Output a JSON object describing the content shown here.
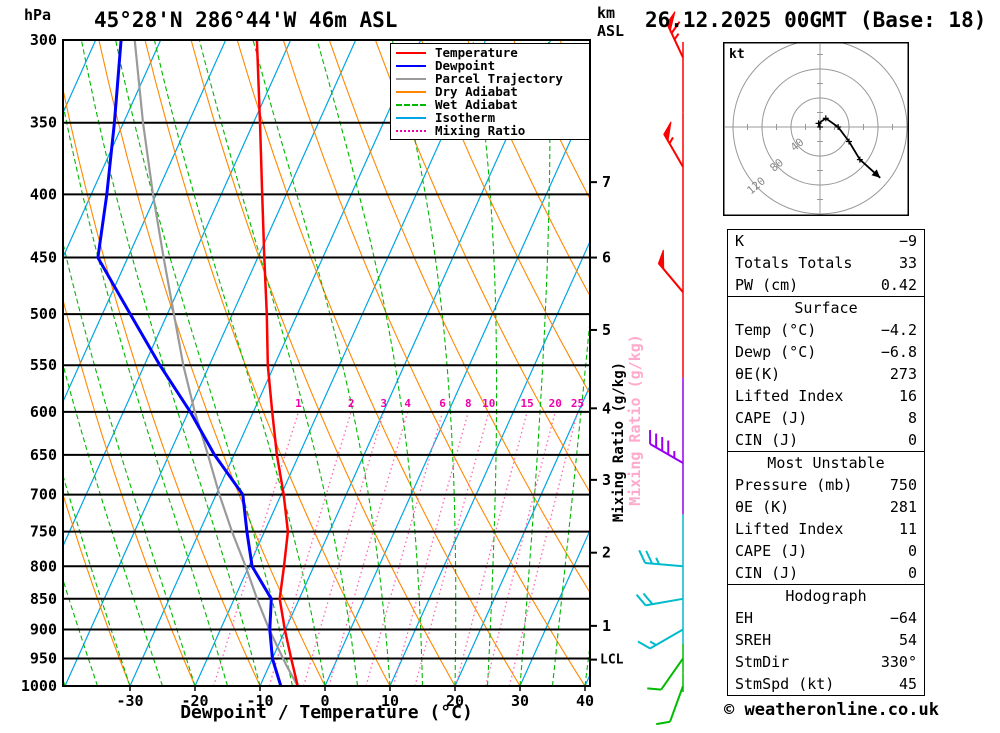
{
  "page": {
    "station_title": "45°28'N 286°44'W 46m ASL",
    "datetime_title": "26.12.2025 00GMT (Base: 18)",
    "alt_unit_km": "km",
    "alt_unit_asl": "ASL"
  },
  "axes": {
    "pressure_unit": "hPa",
    "x_label": "Dewpoint / Temperature (°C)",
    "x_ticks": [
      -30,
      -20,
      -10,
      0,
      10,
      20,
      30,
      40
    ],
    "pressure_ticks": [
      300,
      350,
      400,
      450,
      500,
      550,
      600,
      650,
      700,
      750,
      800,
      850,
      900,
      950,
      1000
    ],
    "mixing_ratio_axis_label": "Mixing Ratio (g/kg)"
  },
  "legend": {
    "items": [
      {
        "label": "Temperature",
        "color": "#ff0000",
        "style": "solid"
      },
      {
        "label": "Dewpoint",
        "color": "#0000ff",
        "style": "solid"
      },
      {
        "label": "Parcel Trajectory",
        "color": "#9a9a9a",
        "style": "solid"
      },
      {
        "label": "Dry Adiabat",
        "color": "#ff8800",
        "style": "solid"
      },
      {
        "label": "Wet Adiabat",
        "color": "#00b800",
        "style": "dashed"
      },
      {
        "label": "Isotherm",
        "color": "#00a5e5",
        "style": "solid"
      },
      {
        "label": "Mixing Ratio",
        "color": "#ee00aa",
        "style": "dotted"
      }
    ]
  },
  "chart_data": {
    "type": "line",
    "subtype": "skew-t-log-p-sounding",
    "x_axis": {
      "label": "Dewpoint / Temperature (°C)",
      "range_at_surface": [
        -40,
        41
      ],
      "ticks": [
        -30,
        -20,
        -10,
        0,
        10,
        20,
        30,
        40
      ]
    },
    "y_axis": {
      "label": "hPa",
      "scale": "log",
      "range": [
        300,
        1000
      ],
      "ticks": [
        300,
        350,
        400,
        450,
        500,
        550,
        600,
        650,
        700,
        750,
        800,
        850,
        900,
        950,
        1000
      ]
    },
    "series": [
      {
        "name": "Temperature",
        "color": "#ff0000",
        "points_p_t": [
          [
            1000,
            -4.2
          ],
          [
            950,
            -7.1
          ],
          [
            900,
            -10.1
          ],
          [
            850,
            -13.0
          ],
          [
            800,
            -14.6
          ],
          [
            750,
            -16.4
          ],
          [
            700,
            -19.6
          ],
          [
            650,
            -23.4
          ],
          [
            600,
            -27.1
          ],
          [
            550,
            -31.0
          ],
          [
            500,
            -34.7
          ],
          [
            450,
            -39.0
          ],
          [
            400,
            -43.7
          ],
          [
            350,
            -49.0
          ],
          [
            300,
            -55.2
          ]
        ]
      },
      {
        "name": "Dewpoint",
        "color": "#0000ff",
        "points_p_t": [
          [
            1000,
            -6.8
          ],
          [
            950,
            -10.0
          ],
          [
            900,
            -12.4
          ],
          [
            850,
            -14.3
          ],
          [
            800,
            -19.5
          ],
          [
            750,
            -22.7
          ],
          [
            700,
            -25.9
          ],
          [
            650,
            -33.0
          ],
          [
            600,
            -39.7
          ],
          [
            550,
            -47.6
          ],
          [
            500,
            -55.7
          ],
          [
            450,
            -64.6
          ],
          [
            400,
            -67.6
          ],
          [
            350,
            -71.4
          ],
          [
            300,
            -76.1
          ]
        ]
      },
      {
        "name": "Parcel Trajectory",
        "color": "#9a9a9a",
        "points_p_t": [
          [
            1000,
            -4.2
          ],
          [
            962,
            -7.4
          ],
          [
            900,
            -12.5
          ],
          [
            850,
            -16.5
          ],
          [
            800,
            -20.5
          ],
          [
            750,
            -25.0
          ],
          [
            700,
            -29.5
          ],
          [
            650,
            -34.0
          ],
          [
            600,
            -39.0
          ],
          [
            550,
            -44.0
          ],
          [
            500,
            -49.0
          ],
          [
            450,
            -54.5
          ],
          [
            400,
            -60.5
          ],
          [
            350,
            -67.0
          ],
          [
            300,
            -74.0
          ]
        ]
      }
    ],
    "background_lines": {
      "isotherm_step_c": 10,
      "dry_adiabat_theta_c": [
        -40,
        110
      ],
      "wet_adiabat_surface_temps_c": [
        -40,
        40
      ],
      "mixing_ratio_g_kg": [
        1,
        2,
        3,
        4,
        6,
        8,
        10,
        15,
        20,
        25
      ]
    },
    "km_ticks": [
      {
        "km": 1,
        "p": 894
      },
      {
        "km": 2,
        "p": 780
      },
      {
        "km": 3,
        "p": 681
      },
      {
        "km": 4,
        "p": 596
      },
      {
        "km": 5,
        "p": 515
      },
      {
        "km": 6,
        "p": 450
      },
      {
        "km": 7,
        "p": 391
      }
    ],
    "lcl": {
      "label": "LCL",
      "pressure": 952
    },
    "wind_barbs": [
      {
        "p": 310,
        "speed_kt": 65,
        "dir_deg": 335,
        "color": "#ff0000"
      },
      {
        "p": 380,
        "speed_kt": 55,
        "dir_deg": 330,
        "color": "#ff0000"
      },
      {
        "p": 480,
        "speed_kt": 50,
        "dir_deg": 320,
        "color": "#ff0000"
      },
      {
        "p": 660,
        "speed_kt": 45,
        "dir_deg": 300,
        "color": "#9900ee"
      },
      {
        "p": 800,
        "speed_kt": 25,
        "dir_deg": 275,
        "color": "#00bbcc"
      },
      {
        "p": 850,
        "speed_kt": 20,
        "dir_deg": 260,
        "color": "#00bbcc"
      },
      {
        "p": 900,
        "speed_kt": 15,
        "dir_deg": 240,
        "color": "#00bbcc"
      },
      {
        "p": 950,
        "speed_kt": 10,
        "dir_deg": 215,
        "color": "#00bb00"
      },
      {
        "p": 1000,
        "speed_kt": 10,
        "dir_deg": 200,
        "color": "#00bb00"
      }
    ],
    "hodograph": {
      "unit": "kt",
      "rings_kt": [
        40,
        80,
        120
      ],
      "trace_uv_kt": [
        [
          0,
          0
        ],
        [
          -2,
          5
        ],
        [
          8,
          12
        ],
        [
          25,
          0
        ],
        [
          40,
          -20
        ],
        [
          55,
          -45
        ],
        [
          83,
          -70
        ]
      ]
    }
  },
  "stats": {
    "sections": [
      {
        "title": null,
        "rows": [
          [
            "K",
            "−9"
          ],
          [
            "Totals Totals",
            "33"
          ],
          [
            "PW (cm)",
            "0.42"
          ]
        ]
      },
      {
        "title": "Surface",
        "rows": [
          [
            "Temp (°C)",
            "−4.2"
          ],
          [
            "Dewp (°C)",
            "−6.8"
          ],
          [
            "θE(K)",
            "273"
          ],
          [
            "Lifted Index",
            "16"
          ],
          [
            "CAPE (J)",
            "8"
          ],
          [
            "CIN (J)",
            "0"
          ]
        ]
      },
      {
        "title": "Most Unstable",
        "rows": [
          [
            "Pressure (mb)",
            "750"
          ],
          [
            "θE (K)",
            "281"
          ],
          [
            "Lifted Index",
            "11"
          ],
          [
            "CAPE (J)",
            "0"
          ],
          [
            "CIN (J)",
            "0"
          ]
        ]
      },
      {
        "title": "Hodograph",
        "rows": [
          [
            "EH",
            "−64"
          ],
          [
            "SREH",
            "54"
          ],
          [
            "StmDir",
            "330°"
          ],
          [
            "StmSpd (kt)",
            "45"
          ]
        ]
      }
    ]
  },
  "footer": {
    "copyright": "© weatheronline.co.uk"
  },
  "colors": {
    "temperature": "#ff0000",
    "dewpoint": "#0000ff",
    "parcel": "#9a9a9a",
    "dry_adiabat": "#ff8800",
    "wet_adiabat": "#00b800",
    "isotherm": "#00a5e5",
    "mixing_ratio_line": "#ff66b3",
    "mixing_ratio_label": "#ee00aa",
    "grid": "#000000",
    "hodo_grid": "#999999"
  }
}
